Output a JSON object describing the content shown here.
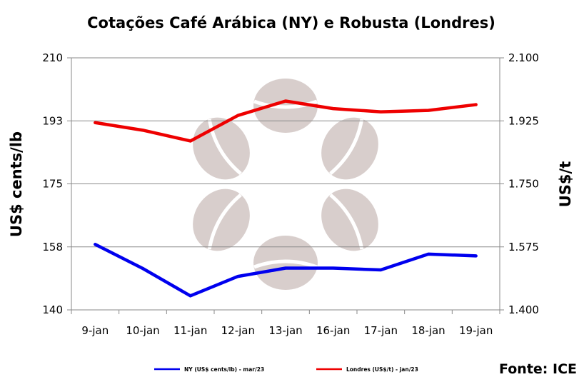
{
  "chart_data": {
    "type": "line",
    "title": "Cotações Café Arábica (NY) e Robusta (Londres)",
    "categories": [
      "9-jan",
      "10-jan",
      "11-jan",
      "12-jan",
      "13-jan",
      "16-jan",
      "17-jan",
      "18-jan",
      "19-jan"
    ],
    "y_left": {
      "label": "US$ cents/lb",
      "min": 140,
      "max": 210,
      "ticks": [
        "210",
        "193",
        "175",
        "158",
        "140"
      ]
    },
    "y_right": {
      "label": "US$/t",
      "min": 1400,
      "max": 2100,
      "ticks": [
        "2.100",
        "1.925",
        "1.750",
        "1.575",
        "1.400"
      ]
    },
    "series": [
      {
        "name": "NY (US$ cents/lb) - mar/23",
        "axis": "left",
        "color": "#0000ee",
        "values": [
          158.2,
          151.5,
          143.9,
          149.3,
          151.6,
          151.6,
          151.1,
          155.5,
          155.0
        ]
      },
      {
        "name": "Londres (US$/t) - jan/23",
        "axis": "right",
        "color": "#ee0000",
        "values": [
          1920,
          1899,
          1869,
          1940,
          1980,
          1959,
          1950,
          1954,
          1970
        ]
      }
    ],
    "grid": true,
    "legend": "bottom",
    "source": "Fonte: ICE",
    "watermark": "coffee-beans-logo"
  }
}
